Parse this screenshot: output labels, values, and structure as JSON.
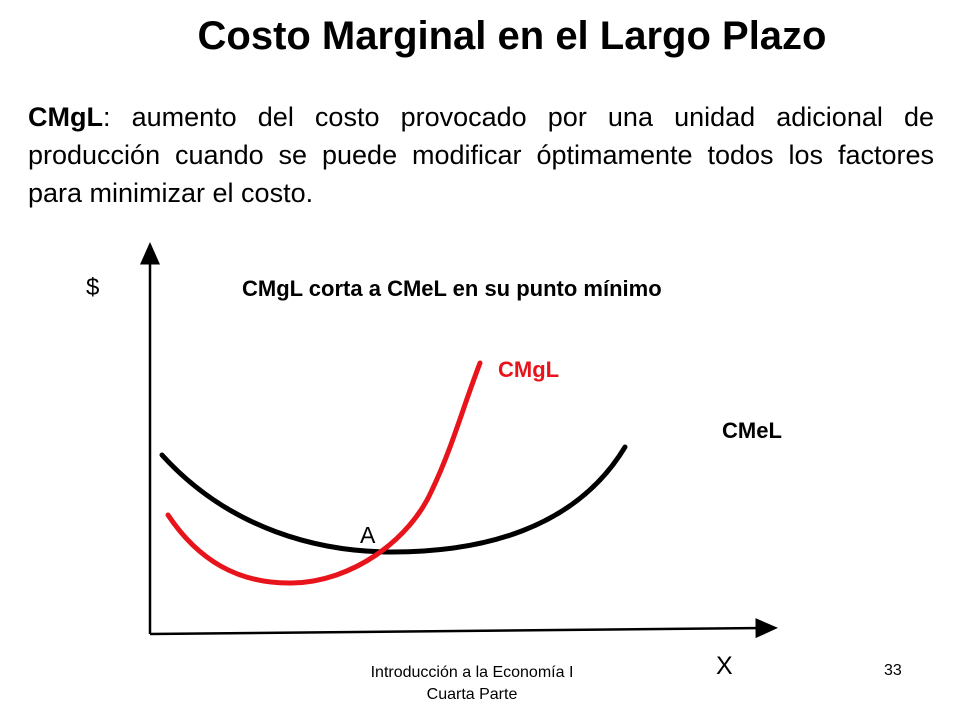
{
  "title": "Costo Marginal en el Largo Plazo",
  "definition": {
    "term": "CMgL",
    "text": ": aumento del costo provocado por una unidad adicional de producción cuando se puede modificar óptimamente todos los factores para minimizar el costo."
  },
  "diagram": {
    "y_axis_label": "$",
    "x_axis_label": "X",
    "note": "CMgL corta a CMeL en su punto mínimo",
    "curves": [
      {
        "label": "CMgL",
        "color": "#e8141c"
      },
      {
        "label": "CMeL",
        "color": "#000000"
      }
    ],
    "point_label": "A"
  },
  "footer": {
    "line1": "Introducción a la Economía I",
    "line2": "Cuarta Parte"
  },
  "page_number": "33"
}
